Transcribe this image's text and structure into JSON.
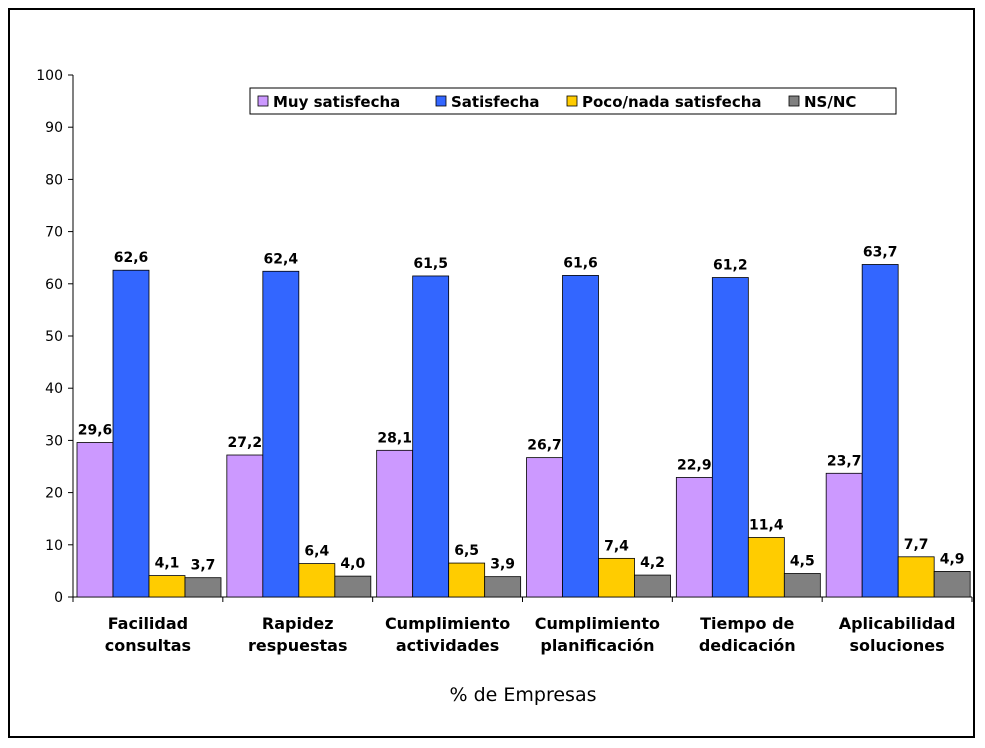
{
  "chart_data": {
    "type": "bar",
    "title": "",
    "xlabel": "% de Empresas",
    "ylabel": "",
    "ylim": [
      0,
      100
    ],
    "yticks": [
      0,
      10,
      20,
      30,
      40,
      50,
      60,
      70,
      80,
      90,
      100
    ],
    "grid": false,
    "legend_position": "top-center",
    "categories": [
      [
        "Facilidad",
        "consultas"
      ],
      [
        "Rapidez",
        "respuestas"
      ],
      [
        "Cumplimiento",
        "actividades"
      ],
      [
        "Cumplimiento",
        "planificación"
      ],
      [
        "Tiempo de",
        "dedicación"
      ],
      [
        "Aplicabilidad",
        "soluciones"
      ]
    ],
    "series": [
      {
        "name": "Muy satisfecha",
        "color": "#cc99ff",
        "values": [
          29.6,
          27.2,
          28.1,
          26.7,
          22.9,
          23.7
        ],
        "labels": [
          "29,6",
          "27,2",
          "28,1",
          "26,7",
          "22,9",
          "23,7"
        ]
      },
      {
        "name": "Satisfecha",
        "color": "#3366ff",
        "values": [
          62.6,
          62.4,
          61.5,
          61.6,
          61.2,
          63.7
        ],
        "labels": [
          "62,6",
          "62,4",
          "61,5",
          "61,6",
          "61,2",
          "63,7"
        ]
      },
      {
        "name": "Poco/nada satisfecha",
        "color": "#ffcc00",
        "values": [
          4.1,
          6.4,
          6.5,
          7.4,
          11.4,
          7.7
        ],
        "labels": [
          "4,1",
          "6,4",
          "6,5",
          "7,4",
          "11,4",
          "7,7"
        ]
      },
      {
        "name": "NS/NC",
        "color": "#808080",
        "values": [
          3.7,
          4.0,
          3.9,
          4.2,
          4.5,
          4.9
        ],
        "labels": [
          "3,7",
          "4,0",
          "3,9",
          "4,2",
          "4,5",
          "4,9"
        ]
      }
    ]
  }
}
